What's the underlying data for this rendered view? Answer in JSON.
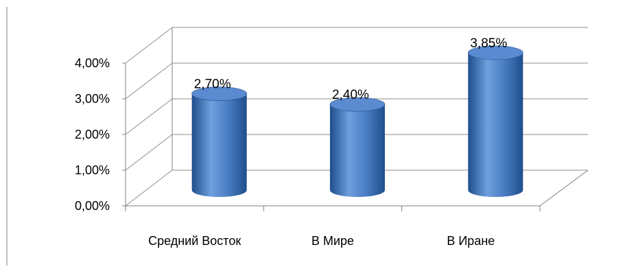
{
  "chart_data": {
    "type": "bar",
    "style": "3d-cylinder",
    "categories": [
      "Средний Восток",
      "В Мире",
      "В Иране"
    ],
    "values": [
      2.7,
      2.4,
      3.85
    ],
    "data_labels": [
      "2,70%",
      "2,40%",
      "3,85%"
    ],
    "ylim": [
      0,
      4
    ],
    "y_ticks": [
      0,
      1,
      2,
      3,
      4
    ],
    "y_tick_labels": [
      "0,00%",
      "1,00%",
      "2,00%",
      "3,00%",
      "4,00%"
    ],
    "grid": true,
    "legend": "none",
    "colors": {
      "bar_dark": "#1f4e8c",
      "bar_mid": "#4a7ec4",
      "bar_light": "#6f9fdd",
      "bar_top": "#5a8bd0",
      "axis": "#7f7f7f",
      "grid": "#8c8c8c"
    }
  }
}
